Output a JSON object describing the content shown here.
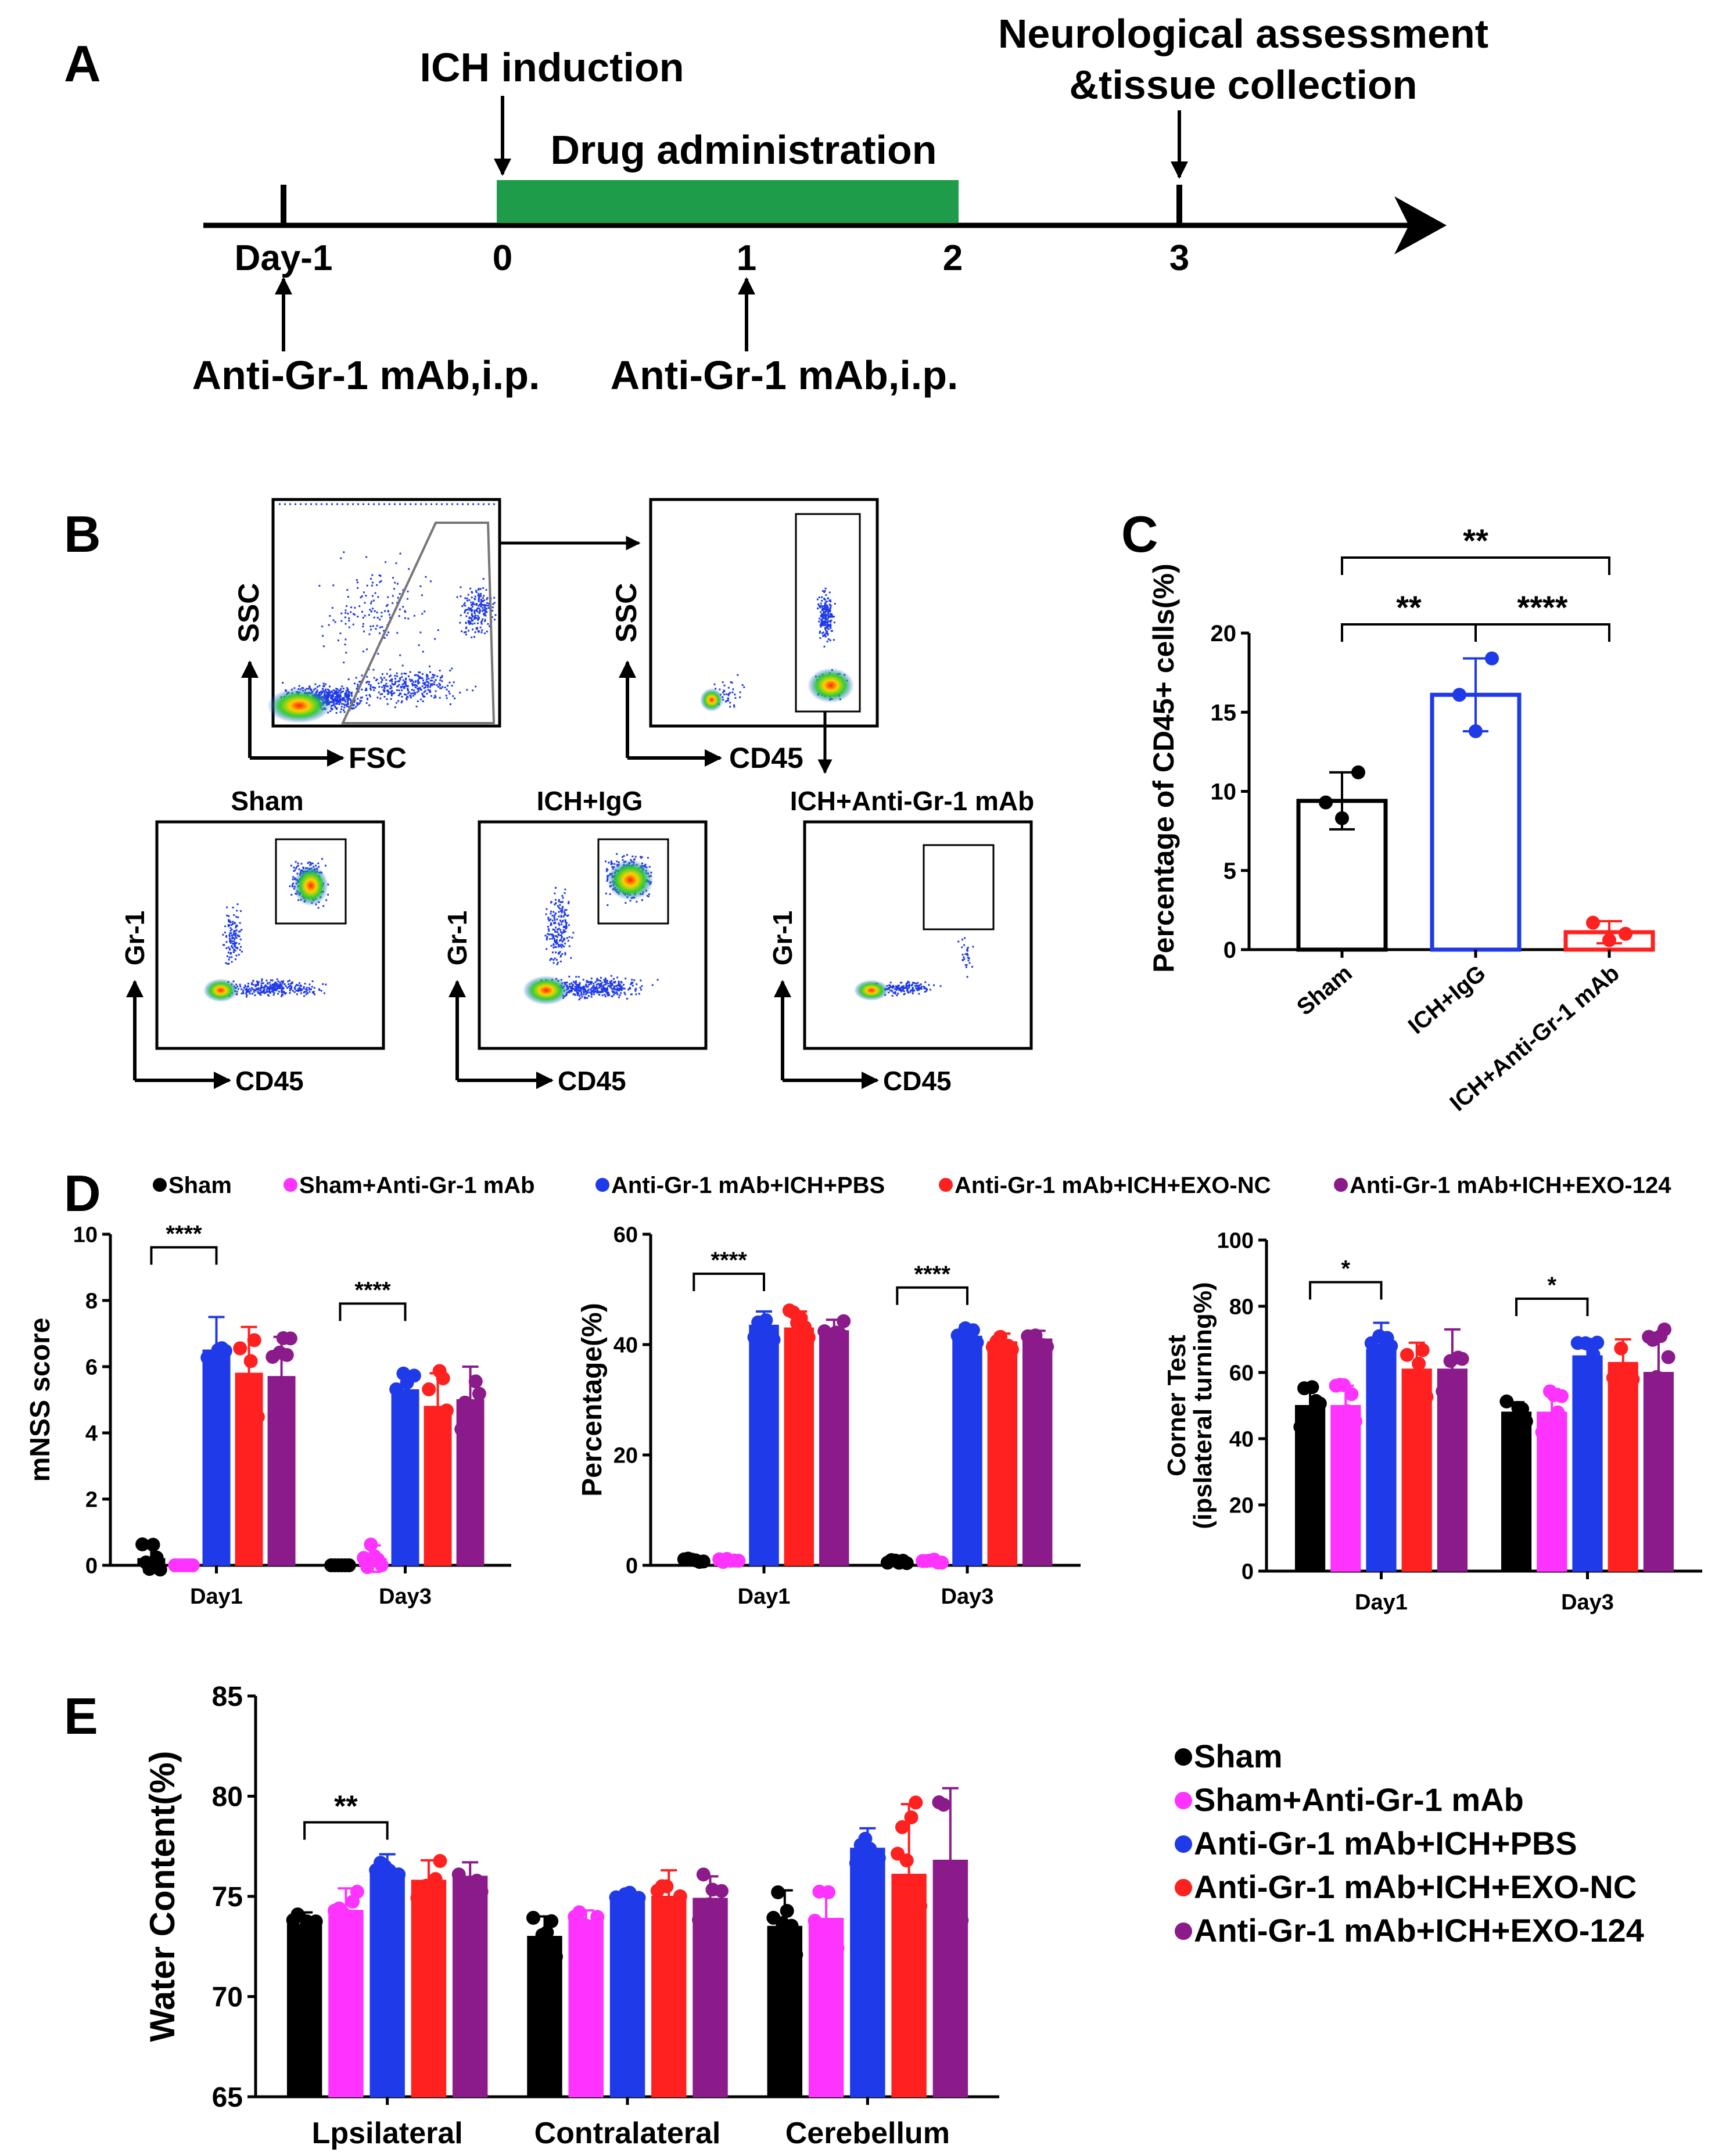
{
  "panel_letters": {
    "a": "A",
    "b": "B",
    "c": "C",
    "d": "D",
    "e": "E"
  },
  "timeline": {
    "ticks": [
      "Day-1",
      "0",
      "1",
      "2",
      "3"
    ],
    "ich_induction": "ICH induction",
    "drug_administration": "Drug administration",
    "neuro_line1": "Neurological assessment",
    "neuro_line2": "&tissue collection",
    "anti_gr1_1": "Anti-Gr-1 mAb,i.p.",
    "anti_gr1_2": "Anti-Gr-1 mAb,i.p.",
    "colors": {
      "bar": "#1e9c4a"
    }
  },
  "flow": {
    "top_left": {
      "x": "FSC",
      "y": "SSC"
    },
    "top_right": {
      "x": "CD45",
      "y": "SSC"
    },
    "bottom": [
      {
        "title": "Sham",
        "x": "CD45",
        "y": "Gr-1"
      },
      {
        "title": "ICH+IgG",
        "x": "CD45",
        "y": "Gr-1"
      },
      {
        "title": "ICH+Anti-Gr-1 mAb",
        "x": "CD45",
        "y": "Gr-1"
      }
    ]
  },
  "legend": {
    "items": [
      "Sham",
      "Sham+Anti-Gr-1 mAb",
      "Anti-Gr-1 mAb+ICH+PBS",
      "Anti-Gr-1 mAb+ICH+EXO-NC",
      "Anti-Gr-1 mAb+ICH+EXO-124"
    ],
    "colors": [
      "#000000",
      "#ff33ff",
      "#1f3ae8",
      "#ff2020",
      "#8b1a8b"
    ]
  },
  "chart_data": [
    {
      "id": "C",
      "type": "bar",
      "categories": [
        "Sham",
        "ICH+IgG",
        "ICH+Anti-Gr-1 mAb"
      ],
      "values": [
        9.4,
        16.1,
        1.1
      ],
      "errors": [
        1.8,
        2.3,
        0.7
      ],
      "points": [
        [
          9.3,
          8.3,
          11.2
        ],
        [
          16.1,
          13.8,
          18.4
        ],
        [
          1.7,
          0.6,
          1.0
        ]
      ],
      "colors": [
        "#000000",
        "#1f3ae8",
        "#ff2020"
      ],
      "ylabel": "Percentage of CD45+ cells(%)",
      "ylim": [
        0,
        20
      ],
      "yticks": [
        0,
        5,
        10,
        15,
        20
      ],
      "significance": [
        {
          "from": 0,
          "to": 1,
          "label": "**"
        },
        {
          "from": 1,
          "to": 2,
          "label": "****"
        },
        {
          "from": 0,
          "to": 2,
          "label": "**"
        }
      ]
    },
    {
      "id": "D1",
      "type": "bar",
      "groups": [
        "Day1",
        "Day3"
      ],
      "ylabel": "mNSS score",
      "ylim": [
        0,
        10
      ],
      "yticks": [
        0,
        2,
        4,
        6,
        8,
        10
      ],
      "series": [
        {
          "name": "Sham",
          "values": [
            0.2,
            0.0
          ],
          "errors": [
            0.4,
            0.0
          ]
        },
        {
          "name": "Sham+Anti-Gr-1 mAb",
          "values": [
            0.0,
            0.2
          ],
          "errors": [
            0.0,
            0.4
          ]
        },
        {
          "name": "Anti-Gr-1 mAb+ICH+PBS",
          "values": [
            6.5,
            5.3
          ],
          "errors": [
            1.0,
            0.5
          ]
        },
        {
          "name": "Anti-Gr-1 mAb+ICH+EXO-NC",
          "values": [
            5.8,
            4.8
          ],
          "errors": [
            1.4,
            1.0
          ]
        },
        {
          "name": "Anti-Gr-1 mAb+ICH+EXO-124",
          "values": [
            5.7,
            5.0
          ],
          "errors": [
            1.2,
            1.0
          ]
        }
      ],
      "significance": [
        {
          "group": 0,
          "from": 0,
          "to": 2,
          "label": "****"
        },
        {
          "group": 1,
          "from": 0,
          "to": 2,
          "label": "****"
        }
      ]
    },
    {
      "id": "D2",
      "type": "bar",
      "groups": [
        "Day1",
        "Day3"
      ],
      "ylabel": "Percentage(%)",
      "ylim": [
        0,
        60
      ],
      "yticks": [
        0,
        20,
        40,
        60
      ],
      "series": [
        {
          "name": "Sham",
          "values": [
            0.8,
            0.8
          ],
          "errors": [
            0.4,
            0.4
          ]
        },
        {
          "name": "Sham+Anti-Gr-1 mAb",
          "values": [
            0.9,
            0.9
          ],
          "errors": [
            0.4,
            0.4
          ]
        },
        {
          "name": "Anti-Gr-1 mAb+ICH+PBS",
          "values": [
            43.5,
            41.5
          ],
          "errors": [
            2.5,
            2.0
          ]
        },
        {
          "name": "Anti-Gr-1 mAb+ICH+EXO-NC",
          "values": [
            43.0,
            40.5
          ],
          "errors": [
            3.0,
            1.5
          ]
        },
        {
          "name": "Anti-Gr-1 mAb+ICH+EXO-124",
          "values": [
            42.5,
            41.0
          ],
          "errors": [
            2.0,
            1.5
          ]
        }
      ],
      "significance": [
        {
          "group": 0,
          "from": 0,
          "to": 2,
          "label": "****"
        },
        {
          "group": 1,
          "from": 0,
          "to": 2,
          "label": "****"
        }
      ]
    },
    {
      "id": "D3",
      "type": "bar",
      "groups": [
        "Day1",
        "Day3"
      ],
      "ylabel_line1": "Corner Test",
      "ylabel_line2": "(ipslateral turning%)",
      "ylim": [
        0,
        100
      ],
      "yticks": [
        0,
        20,
        40,
        60,
        80,
        100
      ],
      "series": [
        {
          "name": "Sham",
          "values": [
            50,
            48
          ],
          "errors": [
            6,
            3
          ]
        },
        {
          "name": "Sham+Anti-Gr-1 mAb",
          "values": [
            50,
            48
          ],
          "errors": [
            6,
            7
          ]
        },
        {
          "name": "Anti-Gr-1 mAb+ICH+PBS",
          "values": [
            67,
            65
          ],
          "errors": [
            8,
            5
          ]
        },
        {
          "name": "Anti-Gr-1 mAb+ICH+EXO-NC",
          "values": [
            61,
            63
          ],
          "errors": [
            8,
            7
          ]
        },
        {
          "name": "Anti-Gr-1 mAb+ICH+EXO-124",
          "values": [
            61,
            60
          ],
          "errors": [
            12,
            12
          ]
        }
      ],
      "significance": [
        {
          "group": 0,
          "from": 0,
          "to": 2,
          "label": "*"
        },
        {
          "group": 1,
          "from": 0,
          "to": 2,
          "label": "*"
        }
      ]
    },
    {
      "id": "E",
      "type": "bar",
      "groups": [
        "Lpsilateral",
        "Contralateral",
        "Cerebellum"
      ],
      "ylabel": "Water Content(%)",
      "ylim": [
        65,
        85
      ],
      "yticks": [
        65,
        70,
        75,
        80,
        85
      ],
      "series": [
        {
          "name": "Sham",
          "values": [
            73.6,
            73.0,
            73.5
          ],
          "errors": [
            0.6,
            1.0,
            1.8
          ]
        },
        {
          "name": "Sham+Anti-Gr-1 mAb",
          "values": [
            74.3,
            73.8,
            73.9
          ],
          "errors": [
            1.1,
            0.5,
            1.4
          ]
        },
        {
          "name": "Anti-Gr-1 mAb+ICH+PBS",
          "values": [
            76.2,
            74.9,
            77.4
          ],
          "errors": [
            0.9,
            0.3,
            1.0
          ]
        },
        {
          "name": "Anti-Gr-1 mAb+ICH+EXO-NC",
          "values": [
            75.8,
            75.0,
            76.1
          ],
          "errors": [
            1.0,
            1.3,
            3.5
          ]
        },
        {
          "name": "Anti-Gr-1 mAb+ICH+EXO-124",
          "values": [
            76.0,
            74.9,
            76.8
          ],
          "errors": [
            0.7,
            1.1,
            3.6
          ]
        }
      ],
      "significance": [
        {
          "group": 0,
          "from": 0,
          "to": 2,
          "label": "**"
        }
      ]
    }
  ]
}
